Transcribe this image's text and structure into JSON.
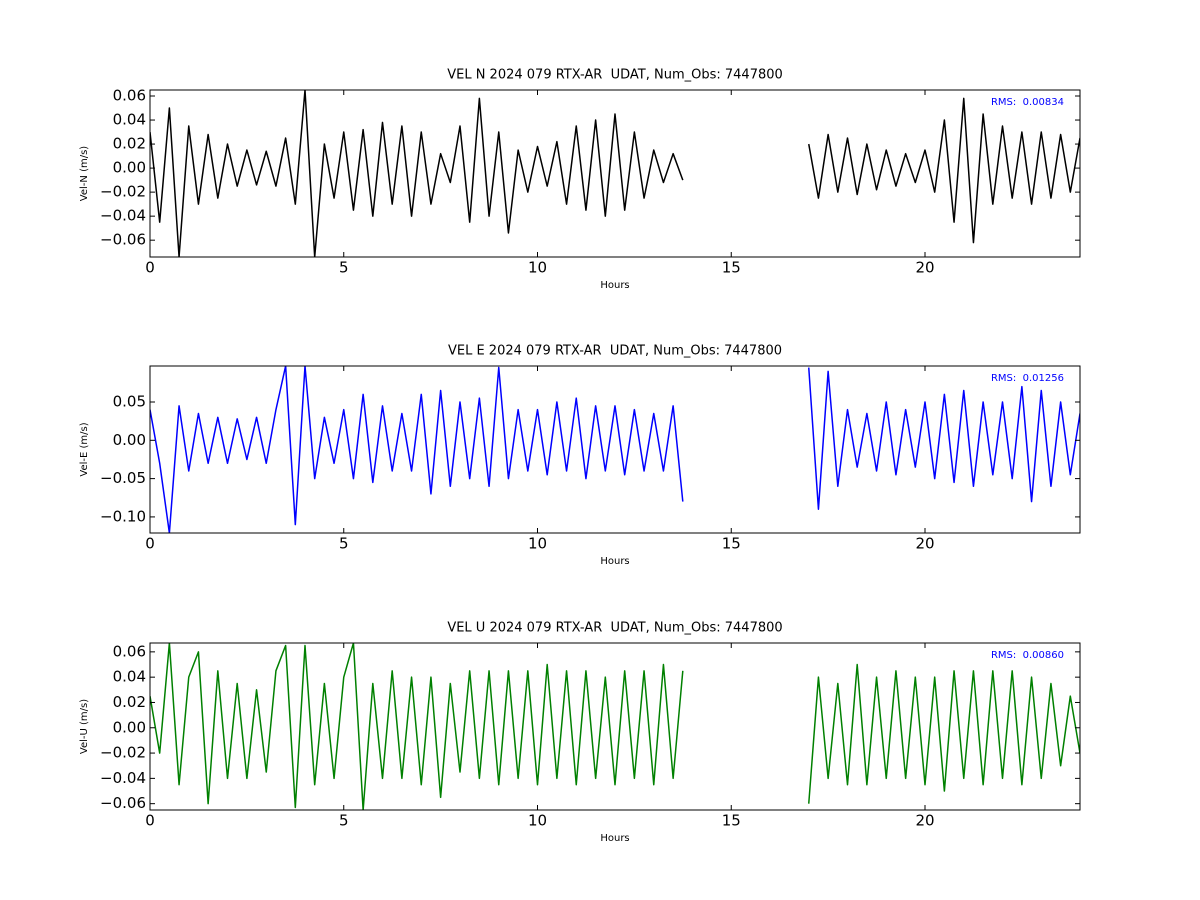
{
  "chart_data": [
    {
      "type": "line",
      "title": "VEL N 2024 079 RTX-AR  UDAT, Num_Obs: 7447800",
      "xlabel": "Hours",
      "ylabel": "Vel-N (m/s)",
      "annotation": "RMS:  0.00834",
      "annotation_color": "#0000ff",
      "color": "#000000",
      "xlim": [
        0,
        24
      ],
      "xticks": [
        0,
        5,
        10,
        15,
        20
      ],
      "ylim": [
        -0.074,
        0.065
      ],
      "yticks": [
        {
          "value": -0.06,
          "label": "−0.06"
        },
        {
          "value": -0.04,
          "label": "−0.04"
        },
        {
          "value": -0.02,
          "label": "−0.02"
        },
        {
          "value": 0,
          "label": "0.00"
        },
        0.02,
        0.04,
        0.06
      ],
      "x": [
        0,
        0.25,
        0.5,
        0.75,
        1,
        1.25,
        1.5,
        1.75,
        2,
        2.25,
        2.5,
        2.75,
        3,
        3.25,
        3.5,
        3.75,
        4,
        4.25,
        4.5,
        4.75,
        5,
        5.25,
        5.5,
        5.75,
        6,
        6.25,
        6.5,
        6.75,
        7,
        7.25,
        7.5,
        7.75,
        8,
        8.25,
        8.5,
        8.75,
        9,
        9.25,
        9.5,
        9.75,
        10,
        10.25,
        10.5,
        10.75,
        11,
        11.25,
        11.5,
        11.75,
        12,
        12.25,
        12.5,
        12.75,
        13,
        13.25,
        13.5,
        13.75,
        15.5,
        17,
        17.25,
        17.5,
        17.75,
        18,
        18.25,
        18.5,
        18.75,
        19,
        19.25,
        19.5,
        19.75,
        20,
        20.25,
        20.5,
        20.75,
        21,
        21.25,
        21.5,
        21.75,
        22,
        22.25,
        22.5,
        22.75,
        23,
        23.25,
        23.5,
        23.75,
        24
      ],
      "values": [
        0.03,
        -0.045,
        0.05,
        -0.074,
        0.035,
        -0.03,
        0.028,
        -0.025,
        0.02,
        -0.015,
        0.015,
        -0.014,
        0.014,
        -0.015,
        0.025,
        -0.03,
        0.065,
        -0.074,
        0.02,
        -0.025,
        0.03,
        -0.035,
        0.032,
        -0.04,
        0.038,
        -0.03,
        0.035,
        -0.04,
        0.03,
        -0.03,
        0.012,
        -0.012,
        0.035,
        -0.045,
        0.058,
        -0.04,
        0.03,
        -0.054,
        0.015,
        -0.02,
        0.018,
        -0.015,
        0.022,
        -0.03,
        0.035,
        -0.035,
        0.04,
        -0.04,
        0.045,
        -0.035,
        0.03,
        -0.025,
        0.015,
        -0.012,
        0.012,
        -0.01,
        null,
        0.02,
        -0.025,
        0.028,
        -0.02,
        0.025,
        -0.022,
        0.02,
        -0.018,
        0.015,
        -0.015,
        0.012,
        -0.012,
        0.015,
        -0.02,
        0.04,
        -0.045,
        0.058,
        -0.062,
        0.045,
        -0.03,
        0.035,
        -0.025,
        0.03,
        -0.03,
        0.03,
        -0.025,
        0.028,
        -0.02,
        0.025
      ]
    },
    {
      "type": "line",
      "title": "VEL E 2024 079 RTX-AR  UDAT, Num_Obs: 7447800",
      "xlabel": "Hours",
      "ylabel": "Vel-E (m/s)",
      "annotation": "RMS:  0.01256",
      "annotation_color": "#0000ff",
      "color": "#0000ff",
      "xlim": [
        0,
        24
      ],
      "xticks": [
        0,
        5,
        10,
        15,
        20
      ],
      "ylim": [
        -0.121,
        0.097
      ],
      "yticks": [
        {
          "value": -0.1,
          "label": "−0.10"
        },
        {
          "value": -0.05,
          "label": "−0.05"
        },
        {
          "value": 0,
          "label": "0.00"
        },
        0.05
      ],
      "x": [
        0,
        0.25,
        0.5,
        0.75,
        1,
        1.25,
        1.5,
        1.75,
        2,
        2.25,
        2.5,
        2.75,
        3,
        3.25,
        3.5,
        3.75,
        4,
        4.25,
        4.5,
        4.75,
        5,
        5.25,
        5.5,
        5.75,
        6,
        6.25,
        6.5,
        6.75,
        7,
        7.25,
        7.5,
        7.75,
        8,
        8.25,
        8.5,
        8.75,
        9,
        9.25,
        9.5,
        9.75,
        10,
        10.25,
        10.5,
        10.75,
        11,
        11.25,
        11.5,
        11.75,
        12,
        12.25,
        12.5,
        12.75,
        13,
        13.25,
        13.5,
        13.75,
        15.5,
        17,
        17.25,
        17.5,
        17.75,
        18,
        18.25,
        18.5,
        18.75,
        19,
        19.25,
        19.5,
        19.75,
        20,
        20.25,
        20.5,
        20.75,
        21,
        21.25,
        21.5,
        21.75,
        22,
        22.25,
        22.5,
        22.75,
        23,
        23.25,
        23.5,
        23.75,
        24
      ],
      "values": [
        0.04,
        -0.03,
        -0.121,
        0.045,
        -0.04,
        0.035,
        -0.03,
        0.03,
        -0.03,
        0.028,
        -0.025,
        0.03,
        -0.03,
        0.04,
        0.097,
        -0.11,
        0.097,
        -0.05,
        0.03,
        -0.03,
        0.04,
        -0.05,
        0.06,
        -0.055,
        0.045,
        -0.04,
        0.035,
        -0.04,
        0.06,
        -0.07,
        0.065,
        -0.06,
        0.05,
        -0.05,
        0.055,
        -0.06,
        0.095,
        -0.05,
        0.04,
        -0.04,
        0.04,
        -0.045,
        0.05,
        -0.04,
        0.055,
        -0.05,
        0.045,
        -0.04,
        0.045,
        -0.045,
        0.04,
        -0.04,
        0.035,
        -0.04,
        0.045,
        -0.08,
        null,
        0.095,
        -0.09,
        0.09,
        -0.06,
        0.04,
        -0.035,
        0.035,
        -0.04,
        0.05,
        -0.045,
        0.04,
        -0.035,
        0.05,
        -0.05,
        0.06,
        -0.055,
        0.065,
        -0.06,
        0.05,
        -0.045,
        0.05,
        -0.05,
        0.07,
        -0.08,
        0.065,
        -0.06,
        0.05,
        -0.045,
        0.035
      ]
    },
    {
      "type": "line",
      "title": "VEL U 2024 079 RTX-AR  UDAT, Num_Obs: 7447800",
      "xlabel": "Hours",
      "ylabel": "Vel-U (m/s)",
      "annotation": "RMS:  0.00860",
      "annotation_color": "#0000ff",
      "color": "#008000",
      "xlim": [
        0,
        24
      ],
      "xticks": [
        0,
        5,
        10,
        15,
        20
      ],
      "ylim": [
        -0.065,
        0.067
      ],
      "yticks": [
        {
          "value": -0.06,
          "label": "−0.06"
        },
        {
          "value": -0.04,
          "label": "−0.04"
        },
        {
          "value": -0.02,
          "label": "−0.02"
        },
        {
          "value": 0,
          "label": "0.00"
        },
        0.02,
        0.04,
        0.06
      ],
      "x": [
        0,
        0.25,
        0.5,
        0.75,
        1,
        1.25,
        1.5,
        1.75,
        2,
        2.25,
        2.5,
        2.75,
        3,
        3.25,
        3.5,
        3.75,
        4,
        4.25,
        4.5,
        4.75,
        5,
        5.25,
        5.5,
        5.75,
        6,
        6.25,
        6.5,
        6.75,
        7,
        7.25,
        7.5,
        7.75,
        8,
        8.25,
        8.5,
        8.75,
        9,
        9.25,
        9.5,
        9.75,
        10,
        10.25,
        10.5,
        10.75,
        11,
        11.25,
        11.5,
        11.75,
        12,
        12.25,
        12.5,
        12.75,
        13,
        13.25,
        13.5,
        13.75,
        15.5,
        17,
        17.25,
        17.5,
        17.75,
        18,
        18.25,
        18.5,
        18.75,
        19,
        19.25,
        19.5,
        19.75,
        20,
        20.25,
        20.5,
        20.75,
        21,
        21.25,
        21.5,
        21.75,
        22,
        22.25,
        22.5,
        22.75,
        23,
        23.25,
        23.5,
        23.75,
        24
      ],
      "values": [
        0.025,
        -0.02,
        0.067,
        -0.045,
        0.04,
        0.06,
        -0.06,
        0.045,
        -0.04,
        0.035,
        -0.04,
        0.03,
        -0.035,
        0.045,
        0.065,
        -0.063,
        0.065,
        -0.045,
        0.035,
        -0.04,
        0.04,
        0.067,
        -0.065,
        0.035,
        -0.04,
        0.045,
        -0.04,
        0.04,
        -0.045,
        0.04,
        -0.055,
        0.035,
        -0.035,
        0.045,
        -0.04,
        0.045,
        -0.045,
        0.045,
        -0.04,
        0.045,
        -0.045,
        0.05,
        -0.04,
        0.045,
        -0.045,
        0.045,
        -0.04,
        0.04,
        -0.045,
        0.045,
        -0.04,
        0.045,
        -0.045,
        0.05,
        -0.04,
        0.045,
        null,
        -0.06,
        0.04,
        -0.04,
        0.035,
        -0.045,
        0.05,
        -0.045,
        0.04,
        -0.04,
        0.045,
        -0.04,
        0.04,
        -0.045,
        0.04,
        -0.05,
        0.045,
        -0.04,
        0.045,
        -0.045,
        0.045,
        -0.04,
        0.045,
        -0.045,
        0.04,
        -0.04,
        0.035,
        -0.03,
        0.025,
        -0.02
      ]
    }
  ]
}
